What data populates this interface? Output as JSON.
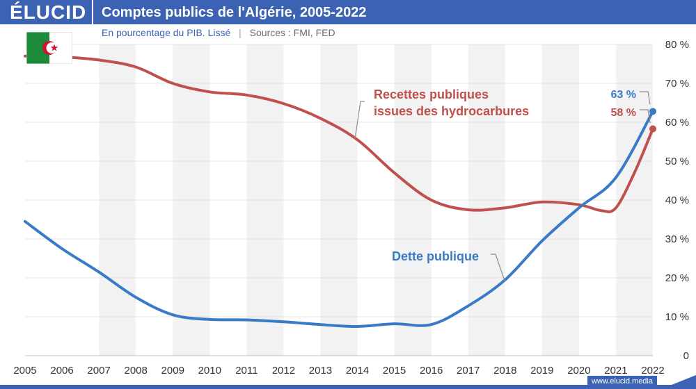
{
  "header": {
    "logo": "ÉLUCID",
    "title": "Comptes publics de l'Algérie, 2005-2022",
    "subtitle": "En pourcentage du PIB. Lissé",
    "sources": "Sources : FMI, FED"
  },
  "footer": {
    "link": "www.elucid.media"
  },
  "chart_data": {
    "type": "line",
    "xlim": [
      2005,
      2022
    ],
    "ylim": [
      0,
      80
    ],
    "x_ticks": [
      "2005",
      "2006",
      "2007",
      "2008",
      "2009",
      "2010",
      "2011",
      "2012",
      "2013",
      "2014",
      "2015",
      "2016",
      "2017",
      "2018",
      "2019",
      "2020",
      "2021",
      "2022"
    ],
    "y_ticks": [
      "0",
      "10 %",
      "20 %",
      "30 %",
      "40 %",
      "50 %",
      "60 %",
      "70 %",
      "80 %"
    ],
    "grid": true,
    "alternating_year_bands": true,
    "series": [
      {
        "name": "Recettes publiques issues des hydrocarbures",
        "color": "#c0504d",
        "x": [
          2005,
          2006,
          2007,
          2008,
          2009,
          2010,
          2011,
          2012,
          2013,
          2014,
          2015,
          2016,
          2017,
          2018,
          2019,
          2020,
          2020.6,
          2021,
          2021.5,
          2022
        ],
        "y": [
          77,
          76.8,
          76,
          74.2,
          70,
          67.8,
          67,
          64.8,
          61,
          55.5,
          47,
          40,
          37.5,
          38,
          39.5,
          38.8,
          37.3,
          38,
          47,
          58.3
        ],
        "end_label": "58 %"
      },
      {
        "name": "Dette publique",
        "color": "#3a7bc8",
        "x": [
          2005,
          2006,
          2007,
          2008,
          2009,
          2010,
          2011,
          2012,
          2013,
          2014,
          2015,
          2016,
          2017,
          2018,
          2019,
          2020,
          2021,
          2022
        ],
        "y": [
          34.5,
          27.5,
          21.5,
          15,
          10.5,
          9.3,
          9.2,
          8.7,
          8,
          7.5,
          8.2,
          8,
          12.8,
          19.5,
          29.5,
          38,
          45.8,
          62.8
        ],
        "end_label": "63 %"
      }
    ]
  }
}
